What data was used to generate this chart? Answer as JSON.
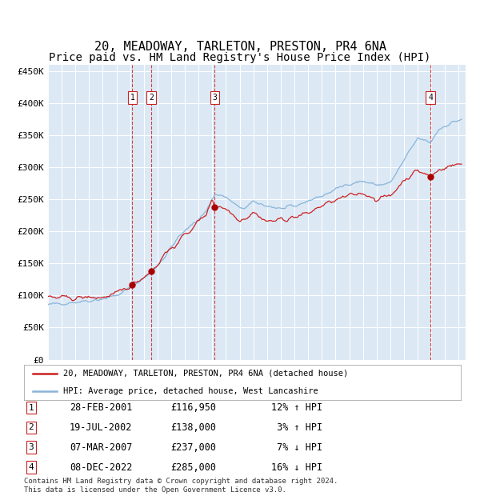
{
  "title": "20, MEADOWAY, TARLETON, PRESTON, PR4 6NA",
  "subtitle": "Price paid vs. HM Land Registry's House Price Index (HPI)",
  "xlim_start": 1995.0,
  "xlim_end": 2025.5,
  "ylim_min": 0,
  "ylim_max": 460000,
  "yticks": [
    0,
    50000,
    100000,
    150000,
    200000,
    250000,
    300000,
    350000,
    400000,
    450000
  ],
  "ytick_labels": [
    "£0",
    "£50K",
    "£100K",
    "£150K",
    "£200K",
    "£250K",
    "£300K",
    "£350K",
    "£400K",
    "£450K"
  ],
  "xticks": [
    1995,
    1996,
    1997,
    1998,
    1999,
    2000,
    2001,
    2002,
    2003,
    2004,
    2005,
    2006,
    2007,
    2008,
    2009,
    2010,
    2011,
    2012,
    2013,
    2014,
    2015,
    2016,
    2017,
    2018,
    2019,
    2020,
    2021,
    2022,
    2023,
    2024,
    2025
  ],
  "bg_color": "#dce9f5",
  "line_color_hpi": "#89b4d8",
  "line_color_price": "#cc2222",
  "sale_marker_color": "#aa0000",
  "sale_points": [
    {
      "num": 1,
      "year": 2001.16,
      "price": 116950,
      "label": "28-FEB-2001",
      "price_str": "£116,950",
      "pct": "12% ↑ HPI"
    },
    {
      "num": 2,
      "year": 2002.54,
      "price": 138000,
      "label": "19-JUL-2002",
      "price_str": "£138,000",
      "pct": " 3% ↑ HPI"
    },
    {
      "num": 3,
      "year": 2007.18,
      "price": 237000,
      "label": "07-MAR-2007",
      "price_str": "£237,000",
      "pct": " 7% ↓ HPI"
    },
    {
      "num": 4,
      "year": 2022.93,
      "price": 285000,
      "label": "08-DEC-2022",
      "price_str": "£285,000",
      "pct": "16% ↓ HPI"
    }
  ],
  "legend_price_label": "20, MEADOWAY, TARLETON, PRESTON, PR4 6NA (detached house)",
  "legend_hpi_label": "HPI: Average price, detached house, West Lancashire",
  "footer": "Contains HM Land Registry data © Crown copyright and database right 2024.\nThis data is licensed under the Open Government Licence v3.0.",
  "title_fontsize": 11,
  "subtitle_fontsize": 10
}
